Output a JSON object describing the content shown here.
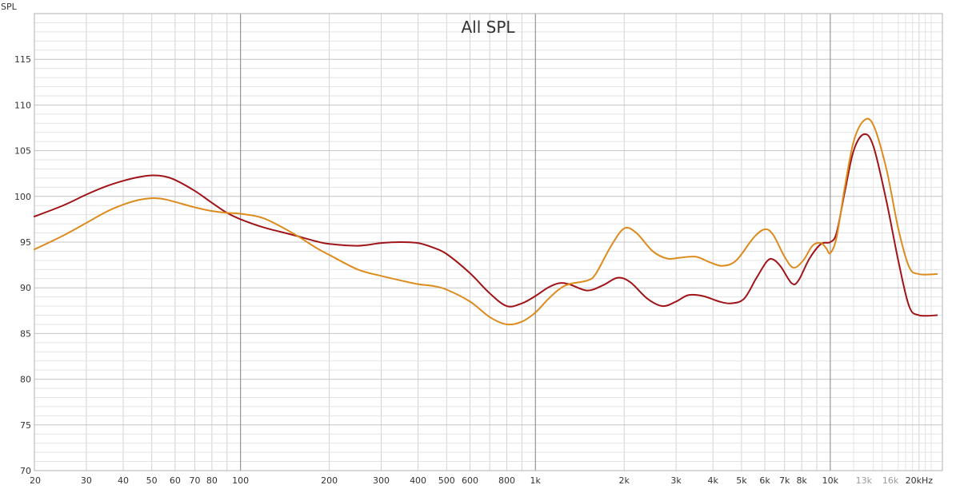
{
  "chart_data": {
    "type": "line",
    "title": "All SPL",
    "ylabel": "SPL",
    "xlabel": "",
    "x_scale": "log",
    "xlim": [
      20,
      24000
    ],
    "ylim": [
      70,
      120
    ],
    "grid": true,
    "legend": "none",
    "y_ticks": [
      70,
      75,
      80,
      85,
      90,
      95,
      100,
      105,
      110,
      115
    ],
    "x_ticks": [
      {
        "value": 20,
        "label": "20"
      },
      {
        "value": 30,
        "label": "30"
      },
      {
        "value": 40,
        "label": "40"
      },
      {
        "value": 50,
        "label": "50"
      },
      {
        "value": 60,
        "label": "60"
      },
      {
        "value": 70,
        "label": "70"
      },
      {
        "value": 80,
        "label": "80"
      },
      {
        "value": 100,
        "label": "100"
      },
      {
        "value": 200,
        "label": "200"
      },
      {
        "value": 300,
        "label": "300"
      },
      {
        "value": 400,
        "label": "400"
      },
      {
        "value": 500,
        "label": "500"
      },
      {
        "value": 600,
        "label": "600"
      },
      {
        "value": 800,
        "label": "800"
      },
      {
        "value": 1000,
        "label": "1k"
      },
      {
        "value": 2000,
        "label": "2k"
      },
      {
        "value": 3000,
        "label": "3k"
      },
      {
        "value": 4000,
        "label": "4k"
      },
      {
        "value": 5000,
        "label": "5k"
      },
      {
        "value": 6000,
        "label": "6k"
      },
      {
        "value": 7000,
        "label": "7k"
      },
      {
        "value": 8000,
        "label": "8k"
      },
      {
        "value": 10000,
        "label": "10k"
      },
      {
        "value": 13000,
        "label": "13k",
        "dim": true
      },
      {
        "value": 16000,
        "label": "16k",
        "dim": true
      },
      {
        "value": 20000,
        "label": "20kHz"
      }
    ],
    "series": [
      {
        "color": "#a01418",
        "points": [
          [
            20,
            97.8
          ],
          [
            25,
            99.0
          ],
          [
            30,
            100.2
          ],
          [
            35,
            101.1
          ],
          [
            40,
            101.7
          ],
          [
            45,
            102.1
          ],
          [
            50,
            102.3
          ],
          [
            55,
            102.2
          ],
          [
            60,
            101.8
          ],
          [
            70,
            100.6
          ],
          [
            80,
            99.3
          ],
          [
            90,
            98.2
          ],
          [
            100,
            97.5
          ],
          [
            120,
            96.6
          ],
          [
            150,
            95.8
          ],
          [
            180,
            95.1
          ],
          [
            200,
            94.8
          ],
          [
            250,
            94.6
          ],
          [
            300,
            94.9
          ],
          [
            350,
            95.0
          ],
          [
            400,
            94.9
          ],
          [
            450,
            94.4
          ],
          [
            500,
            93.7
          ],
          [
            600,
            91.6
          ],
          [
            700,
            89.4
          ],
          [
            800,
            88.0
          ],
          [
            900,
            88.3
          ],
          [
            1000,
            89.1
          ],
          [
            1100,
            90.0
          ],
          [
            1200,
            90.5
          ],
          [
            1300,
            90.4
          ],
          [
            1500,
            89.7
          ],
          [
            1700,
            90.3
          ],
          [
            1900,
            91.1
          ],
          [
            2100,
            90.6
          ],
          [
            2400,
            88.8
          ],
          [
            2700,
            88.0
          ],
          [
            3000,
            88.5
          ],
          [
            3300,
            89.2
          ],
          [
            3700,
            89.1
          ],
          [
            4200,
            88.5
          ],
          [
            4600,
            88.3
          ],
          [
            5100,
            88.8
          ],
          [
            5600,
            91.0
          ],
          [
            6100,
            92.9
          ],
          [
            6400,
            93.1
          ],
          [
            6800,
            92.3
          ],
          [
            7400,
            90.5
          ],
          [
            7800,
            90.8
          ],
          [
            8500,
            93.2
          ],
          [
            9300,
            94.8
          ],
          [
            10000,
            95.0
          ],
          [
            10500,
            96.0
          ],
          [
            11200,
            100.5
          ],
          [
            12000,
            105.0
          ],
          [
            13000,
            106.8
          ],
          [
            14000,
            105.5
          ],
          [
            15500,
            99.5
          ],
          [
            17000,
            93.0
          ],
          [
            18500,
            88.0
          ],
          [
            20000,
            87.0
          ],
          [
            23000,
            87.0
          ]
        ]
      },
      {
        "color": "#dc8b1c",
        "points": [
          [
            20,
            94.2
          ],
          [
            25,
            95.7
          ],
          [
            30,
            97.1
          ],
          [
            35,
            98.3
          ],
          [
            40,
            99.1
          ],
          [
            45,
            99.6
          ],
          [
            50,
            99.8
          ],
          [
            55,
            99.7
          ],
          [
            60,
            99.4
          ],
          [
            70,
            98.8
          ],
          [
            80,
            98.4
          ],
          [
            90,
            98.2
          ],
          [
            100,
            98.1
          ],
          [
            120,
            97.6
          ],
          [
            150,
            96.0
          ],
          [
            180,
            94.4
          ],
          [
            200,
            93.6
          ],
          [
            250,
            92.0
          ],
          [
            300,
            91.3
          ],
          [
            350,
            90.8
          ],
          [
            400,
            90.4
          ],
          [
            450,
            90.2
          ],
          [
            500,
            89.8
          ],
          [
            600,
            88.5
          ],
          [
            700,
            86.8
          ],
          [
            800,
            86.0
          ],
          [
            900,
            86.3
          ],
          [
            1000,
            87.3
          ],
          [
            1100,
            88.7
          ],
          [
            1200,
            89.8
          ],
          [
            1300,
            90.4
          ],
          [
            1500,
            90.8
          ],
          [
            1600,
            91.5
          ],
          [
            1800,
            94.5
          ],
          [
            2000,
            96.5
          ],
          [
            2200,
            96.0
          ],
          [
            2500,
            94.0
          ],
          [
            2800,
            93.2
          ],
          [
            3100,
            93.3
          ],
          [
            3500,
            93.4
          ],
          [
            3900,
            92.8
          ],
          [
            4300,
            92.4
          ],
          [
            4800,
            93.0
          ],
          [
            5500,
            95.5
          ],
          [
            6000,
            96.4
          ],
          [
            6400,
            95.8
          ],
          [
            7000,
            93.4
          ],
          [
            7500,
            92.2
          ],
          [
            8100,
            93.0
          ],
          [
            8700,
            94.6
          ],
          [
            9300,
            94.9
          ],
          [
            9700,
            94.3
          ],
          [
            10000,
            93.8
          ],
          [
            10500,
            95.5
          ],
          [
            11200,
            101.0
          ],
          [
            12000,
            106.0
          ],
          [
            13000,
            108.3
          ],
          [
            14000,
            107.8
          ],
          [
            15500,
            103.0
          ],
          [
            17000,
            96.5
          ],
          [
            18500,
            92.3
          ],
          [
            20000,
            91.5
          ],
          [
            23000,
            91.5
          ]
        ]
      }
    ]
  }
}
